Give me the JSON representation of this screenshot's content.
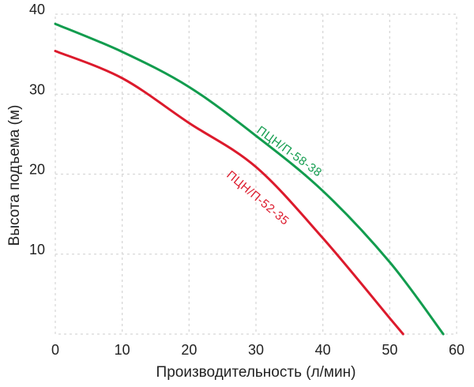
{
  "figure": {
    "background": "#ffffff",
    "text_color": "#222222",
    "grid_color": "#d8d8d8"
  },
  "chart_data": {
    "type": "line",
    "title": "",
    "xlabel": "Производительность (л/мин)",
    "ylabel": "Высота подъема (м)",
    "xlim": [
      0,
      60
    ],
    "ylim": [
      0,
      40
    ],
    "xticks": [
      0,
      10,
      20,
      30,
      40,
      50,
      60
    ],
    "yticks": [
      10,
      20,
      30,
      40
    ],
    "grid": "dashed, both axes, dashed plot border",
    "legend": "inline rotated labels on curves",
    "series": [
      {
        "name": "ПЦН/П-58-38",
        "color": "#129c4e",
        "points": [
          [
            0,
            38.8
          ],
          [
            10,
            35.3
          ],
          [
            20,
            30.9
          ],
          [
            30,
            24.8
          ],
          [
            40,
            17.9
          ],
          [
            50,
            9.0
          ],
          [
            58,
            0
          ]
        ]
      },
      {
        "name": "ПЦН/П-52-35",
        "color": "#dc1a2c",
        "points": [
          [
            0,
            35.4
          ],
          [
            10,
            32.0
          ],
          [
            20,
            26.4
          ],
          [
            30,
            20.9
          ],
          [
            40,
            12.0
          ],
          [
            50,
            2.0
          ],
          [
            52,
            0
          ]
        ]
      }
    ]
  }
}
